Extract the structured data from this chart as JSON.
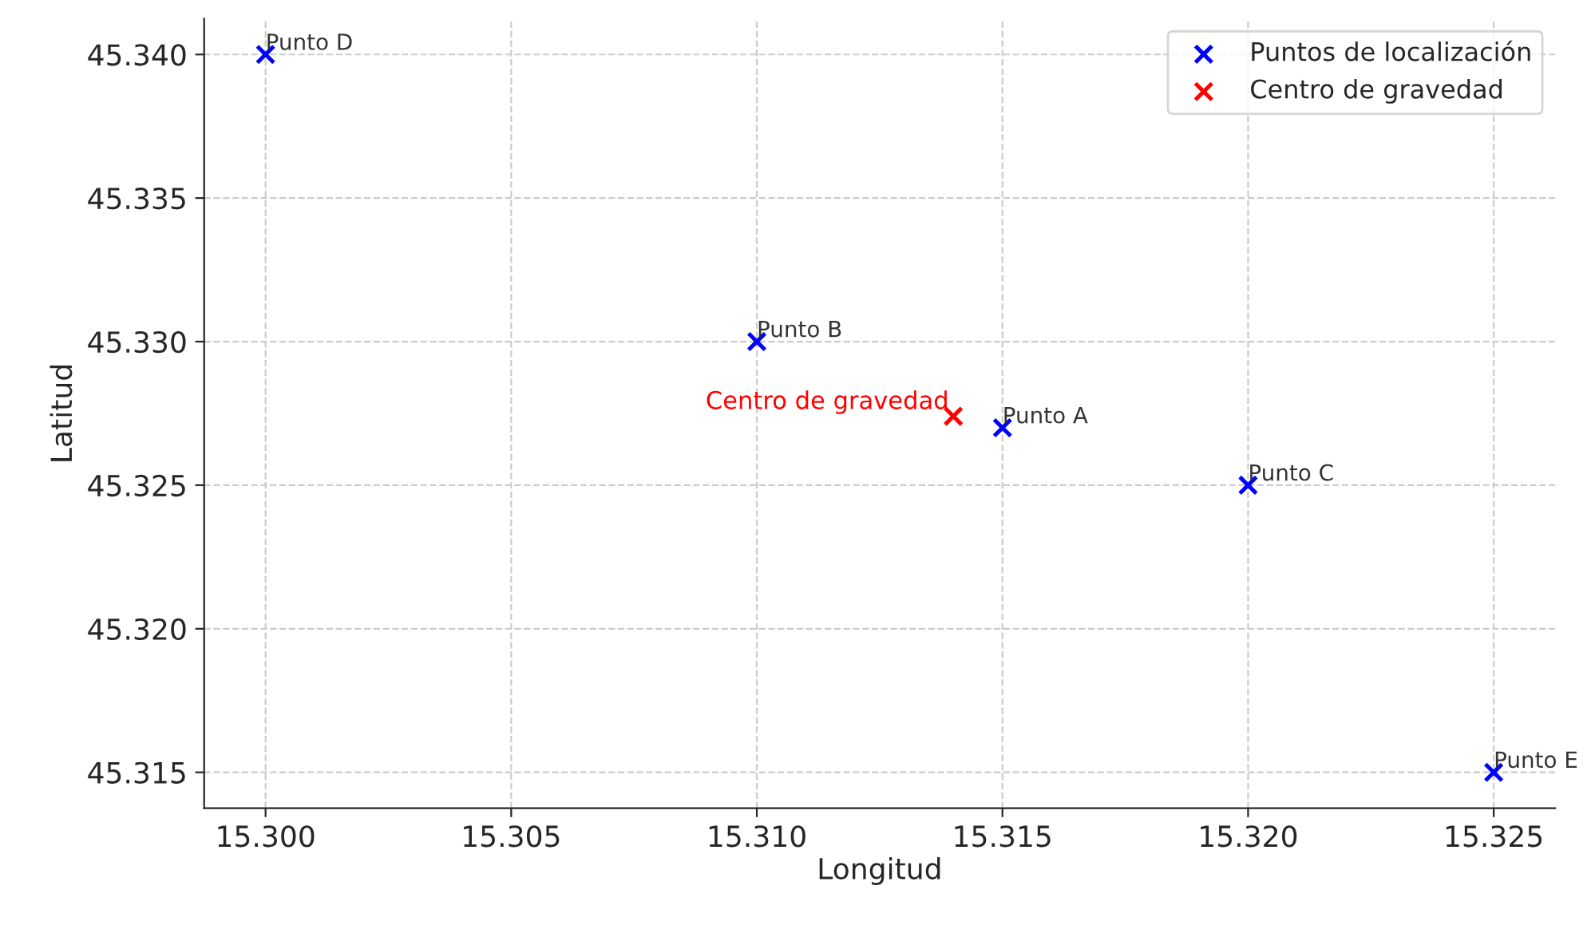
{
  "chart_data": {
    "type": "scatter",
    "xlabel": "Longitud",
    "ylabel": "Latitud",
    "series": [
      {
        "name": "Puntos de localización",
        "color": "#0000ff",
        "x": [
          15.315,
          15.31,
          15.32,
          15.3,
          15.325
        ],
        "values": [
          45.327,
          45.33,
          45.325,
          45.34,
          45.315
        ]
      },
      {
        "name": "Centro de gravedad",
        "color": "#ff0000",
        "x": [
          15.314
        ],
        "values": [
          45.3274
        ]
      }
    ],
    "annotations": [
      {
        "text": "Punto A",
        "x": 15.315,
        "y": 45.327
      },
      {
        "text": "Punto B",
        "x": 15.31,
        "y": 45.33
      },
      {
        "text": "Punto C",
        "x": 15.32,
        "y": 45.325
      },
      {
        "text": "Punto D",
        "x": 15.3,
        "y": 45.34
      },
      {
        "text": "Punto E",
        "x": 15.325,
        "y": 45.315
      },
      {
        "text": "Centro de gravedad",
        "x": 15.314,
        "y": 45.3274
      }
    ],
    "xlim": [
      15.29875,
      15.32625
    ],
    "ylim": [
      45.31375,
      45.34125
    ],
    "xticks": [
      {
        "value": 15.3,
        "label": "15.300"
      },
      {
        "value": 15.305,
        "label": "15.305"
      },
      {
        "value": 15.31,
        "label": "15.310"
      },
      {
        "value": 15.315,
        "label": "15.315"
      },
      {
        "value": 15.32,
        "label": "15.320"
      },
      {
        "value": 15.325,
        "label": "15.325"
      }
    ],
    "yticks": [
      {
        "value": 45.315,
        "label": "45.315"
      },
      {
        "value": 45.32,
        "label": "45.320"
      },
      {
        "value": 45.325,
        "label": "45.325"
      },
      {
        "value": 45.33,
        "label": "45.330"
      },
      {
        "value": 45.335,
        "label": "45.335"
      },
      {
        "value": 45.34,
        "label": "45.340"
      }
    ],
    "grid": true,
    "legend": "top right",
    "marker": "cross"
  }
}
